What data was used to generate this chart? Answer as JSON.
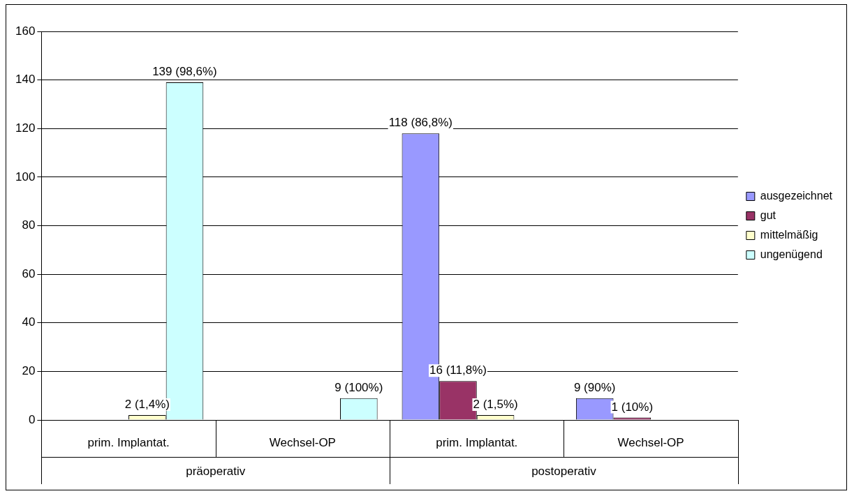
{
  "chart_data": {
    "type": "bar",
    "categories": [
      "prim. Implantat.",
      "Wechsel-OP",
      "prim. Implantat.",
      "Wechsel-OP"
    ],
    "series": [
      {
        "name": "ausgezeichnet",
        "color": "#9999ff",
        "values": [
          null,
          null,
          118,
          9
        ],
        "value_labels": [
          null,
          null,
          "118 (86,8%)",
          "9 (90%)"
        ]
      },
      {
        "name": "gut",
        "color": "#993366",
        "values": [
          null,
          null,
          16,
          1
        ],
        "value_labels": [
          null,
          null,
          "16 (11,8%)",
          "1 (10%)"
        ]
      },
      {
        "name": "mittelmäßig",
        "color": "#ffffcc",
        "values": [
          2,
          null,
          2,
          null
        ],
        "value_labels": [
          "2 (1,4%)",
          null,
          "2 (1,5%)",
          null
        ]
      },
      {
        "name": "ungenügend",
        "color": "#ccffff",
        "values": [
          139,
          9,
          null,
          null
        ],
        "value_labels": [
          "139 (98,6%)",
          "9 (100%)",
          null,
          null
        ]
      }
    ],
    "annotations": [
      "präoperativ",
      "postoperativ"
    ],
    "ylim": [
      0,
      160
    ],
    "yticks": [
      0,
      20,
      40,
      60,
      80,
      100,
      120,
      140,
      160
    ],
    "grid": "y",
    "legend": "right"
  }
}
